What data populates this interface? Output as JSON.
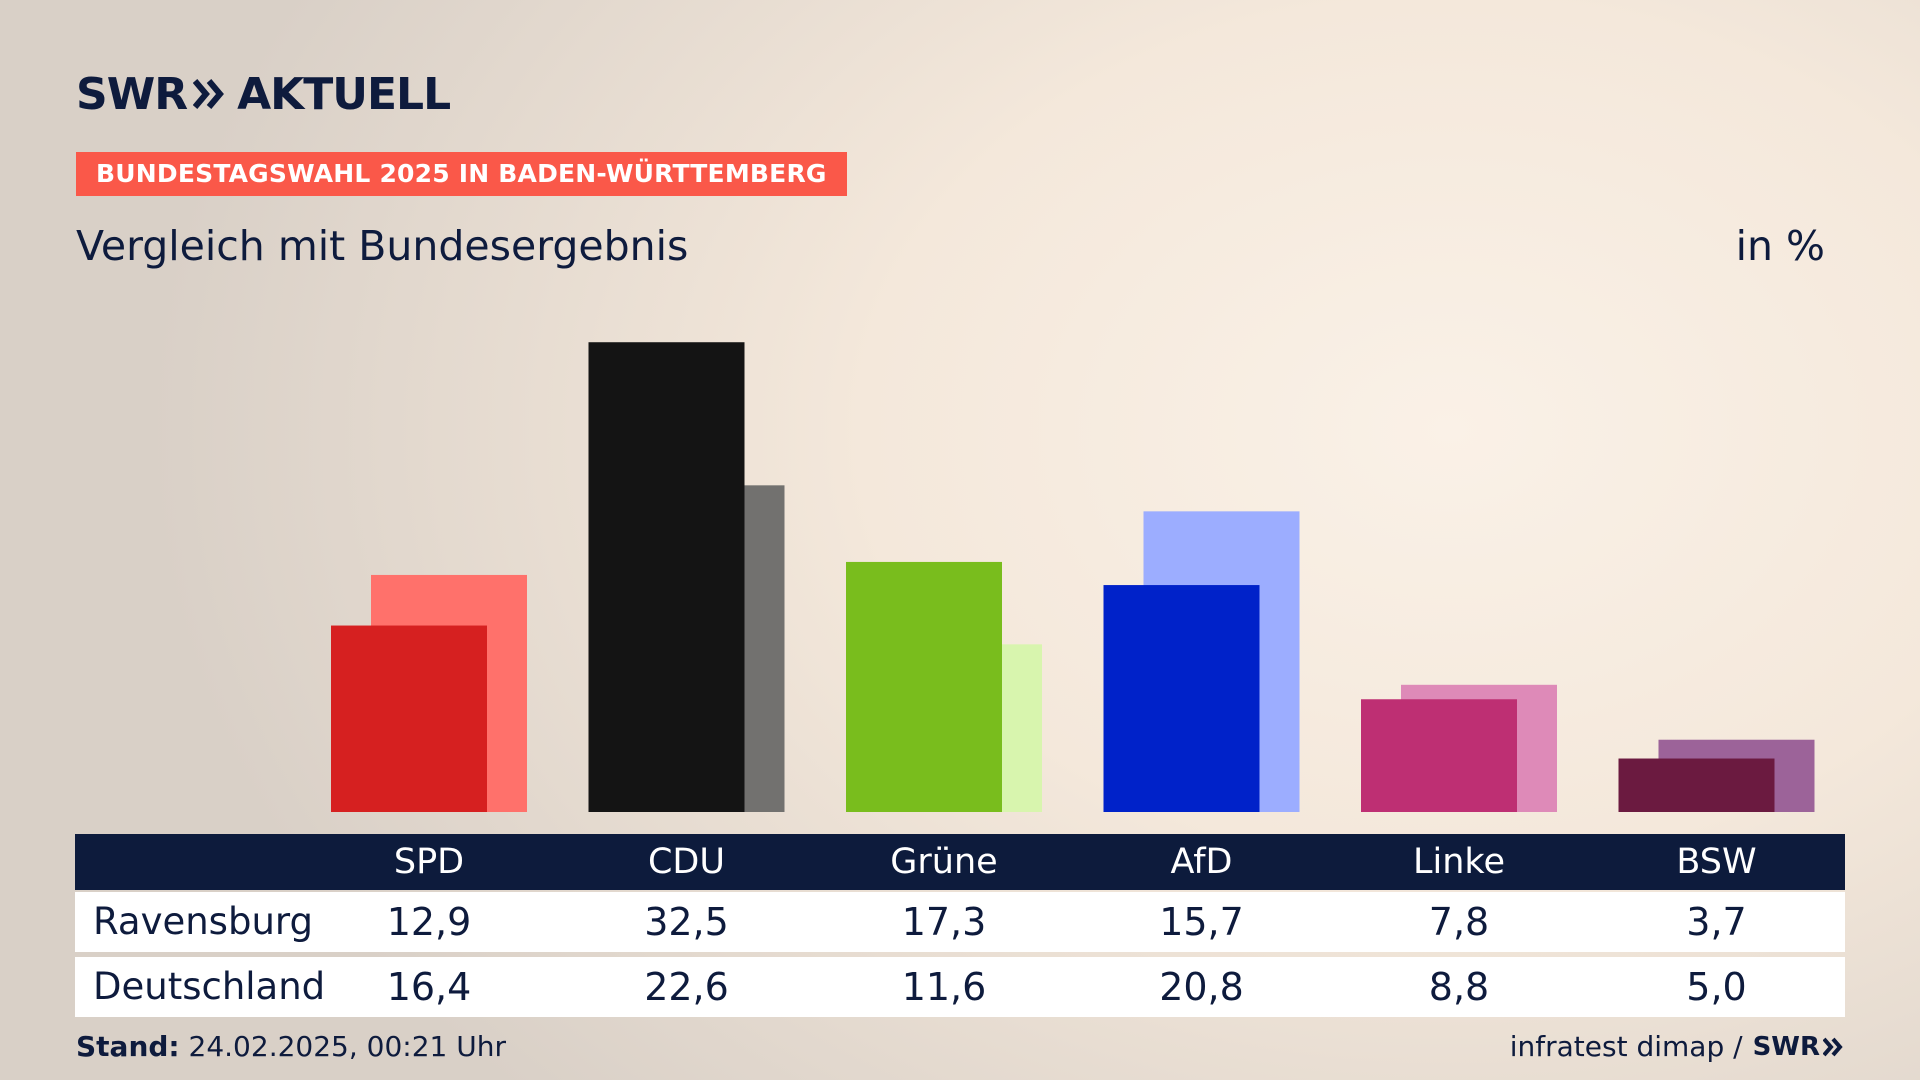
{
  "brand": {
    "swr": "SWR",
    "aktuell": "AKTUELL"
  },
  "topic_label": "BUNDESTAGSWAHL 2025 IN BADEN-WÜRTTEMBERG",
  "subtitle": "Vergleich mit Bundesergebnis",
  "unit": "in %",
  "footer": {
    "stand_label": "Stand:",
    "stand_value": "24.02.2025, 00:21 Uhr",
    "source": "infratest dimap /",
    "source_brand": "SWR"
  },
  "table": {
    "rows": [
      {
        "label": "Ravensburg",
        "values": [
          "12,9",
          "32,5",
          "17,3",
          "15,7",
          "7,8",
          "3,7"
        ]
      },
      {
        "label": "Deutschland",
        "values": [
          "16,4",
          "22,6",
          "11,6",
          "20,8",
          "8,8",
          "5,0"
        ]
      }
    ]
  },
  "chart_data": {
    "type": "bar",
    "categories": [
      "SPD",
      "CDU",
      "Grüne",
      "AfD",
      "Linke",
      "BSW"
    ],
    "series": [
      {
        "name": "Ravensburg",
        "values": [
          12.9,
          32.5,
          17.3,
          15.7,
          7.8,
          3.7
        ],
        "colors": [
          "#d62020",
          "#141414",
          "#79bd1d",
          "#0022c9",
          "#be2f73",
          "#6b1a40"
        ]
      },
      {
        "name": "Deutschland",
        "values": [
          16.4,
          22.6,
          11.6,
          20.8,
          8.8,
          5.0
        ],
        "colors": [
          "#ff716b",
          "#72716f",
          "#d8f5ae",
          "#9cadff",
          "#de8ab8",
          "#9c6399"
        ]
      }
    ],
    "ylim": [
      0,
      33
    ]
  }
}
